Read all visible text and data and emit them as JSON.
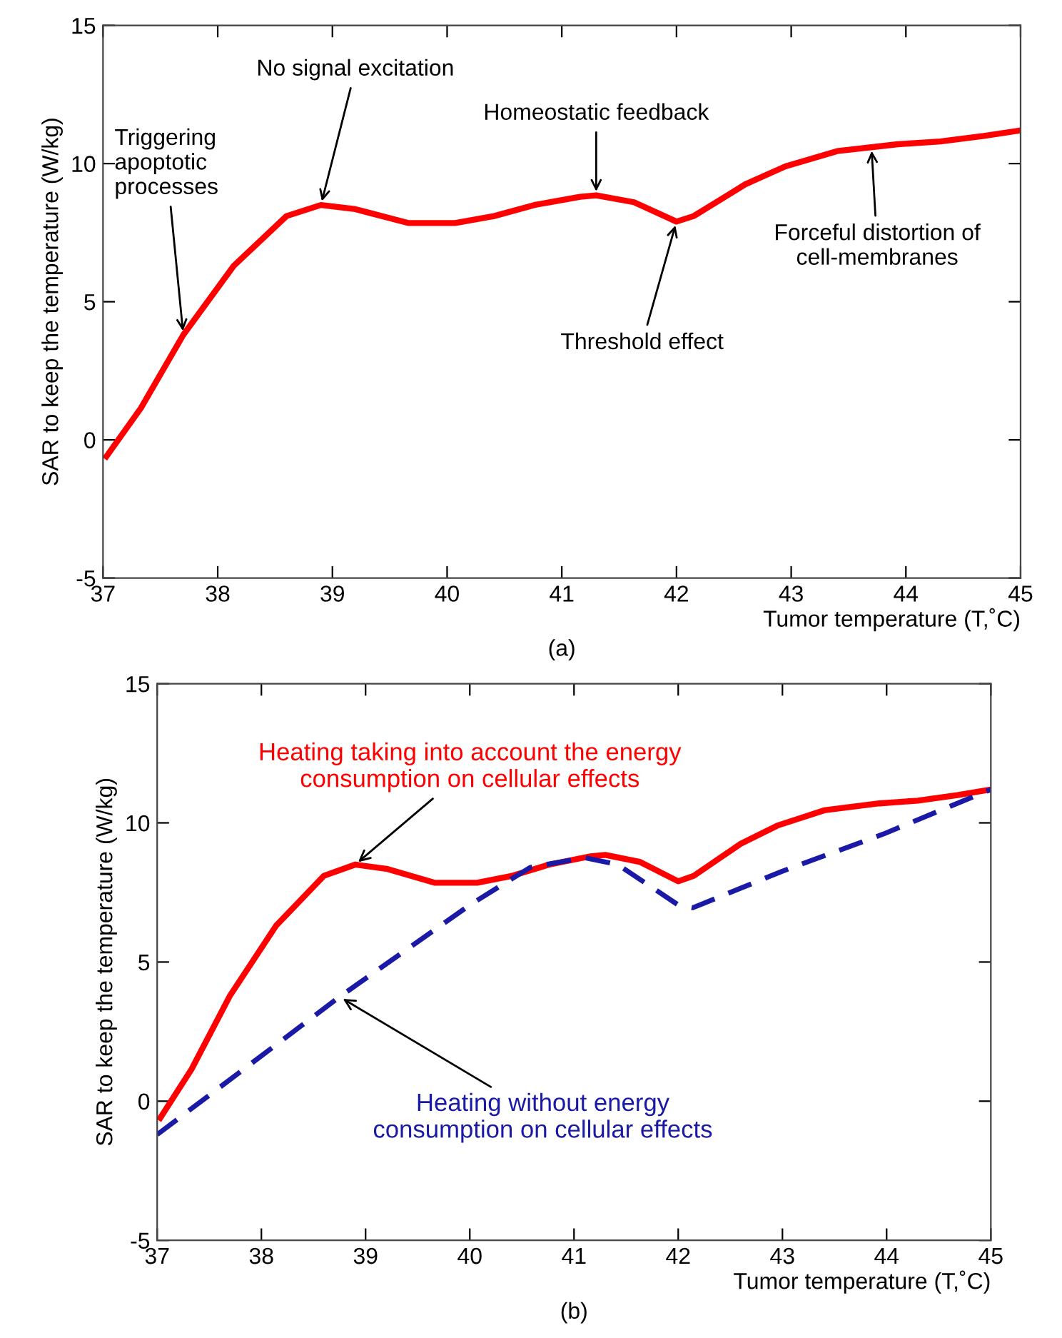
{
  "chart_data": [
    {
      "type": "line",
      "xlabel": "Tumor temperature (T,˚C)",
      "ylabel": "SAR to keep the temperature (W/kg)",
      "xlim": [
        37,
        45
      ],
      "ylim": [
        -5,
        15
      ],
      "xticks": [
        37,
        38,
        39,
        40,
        41,
        42,
        43,
        44,
        45
      ],
      "yticks": [
        -5,
        0,
        5,
        10,
        15
      ],
      "grid": false,
      "legend": false,
      "series": [
        {
          "color": "#ff0000",
          "line_style": "solid",
          "x": [
            37.03,
            37.33,
            37.7,
            38.14,
            38.6,
            38.9,
            39.2,
            39.66,
            40.07,
            40.41,
            40.76,
            41.16,
            41.3,
            41.63,
            42.0,
            42.15,
            42.6,
            42.95,
            43.4,
            43.93,
            44.3,
            44.68,
            45
          ],
          "values": [
            -0.6,
            1.15,
            3.8,
            6.3,
            8.1,
            8.5,
            8.35,
            7.85,
            7.85,
            8.1,
            8.5,
            8.8,
            8.85,
            8.6,
            7.9,
            8.1,
            9.25,
            9.9,
            10.45,
            10.7,
            10.8,
            11.0,
            11.2
          ]
        }
      ],
      "annotations": [
        {
          "text": "Triggering\napoptotic\nprocesses",
          "x": 37.7,
          "y": 3.8
        },
        {
          "text": "No signal excitation",
          "x": 38.9,
          "y": 8.5
        },
        {
          "text": "Homeostatic feedback",
          "x": 41.3,
          "y": 8.85
        },
        {
          "text": "Threshold effect",
          "x": 42.0,
          "y": 7.9
        },
        {
          "text": "Forceful distortion of\ncell-membranes",
          "x": 43.7,
          "y": 10.6
        },
        "(a)"
      ]
    },
    {
      "type": "line",
      "xlabel": "Tumor temperature (T,˚C)",
      "ylabel": "SAR to keep the temperature (W/kg)",
      "xlim": [
        37,
        45
      ],
      "ylim": [
        -5,
        15
      ],
      "xticks": [
        37,
        38,
        39,
        40,
        41,
        42,
        43,
        44,
        45
      ],
      "yticks": [
        -5,
        0,
        5,
        10,
        15
      ],
      "grid": false,
      "legend": false,
      "series": [
        {
          "name": "Heating taking into account the energy\nconsumption on cellular effects",
          "color": "#ff0000",
          "line_style": "solid",
          "x": [
            37.03,
            37.33,
            37.7,
            38.14,
            38.6,
            38.9,
            39.2,
            39.66,
            40.07,
            40.41,
            40.76,
            41.16,
            41.3,
            41.63,
            42.0,
            42.15,
            42.6,
            42.95,
            43.4,
            43.93,
            44.3,
            44.68,
            45
          ],
          "values": [
            -0.6,
            1.15,
            3.8,
            6.3,
            8.1,
            8.5,
            8.35,
            7.85,
            7.85,
            8.1,
            8.5,
            8.8,
            8.85,
            8.6,
            7.9,
            8.1,
            9.25,
            9.9,
            10.45,
            10.7,
            10.8,
            11.0,
            11.2
          ]
        },
        {
          "name": "Heating without energy\nconsumption on cellular effects",
          "color": "#1a1aa6",
          "line_style": "dashed",
          "x": [
            37.0,
            38.75,
            40.0,
            40.58,
            41.1,
            41.42,
            42.0,
            42.14,
            42.99,
            43.97,
            45.0
          ],
          "values": [
            -1.2,
            3.75,
            7.05,
            8.4,
            8.75,
            8.5,
            7.05,
            6.95,
            8.25,
            9.6,
            11.2
          ]
        }
      ],
      "annotations": [
        "(b)"
      ]
    }
  ]
}
